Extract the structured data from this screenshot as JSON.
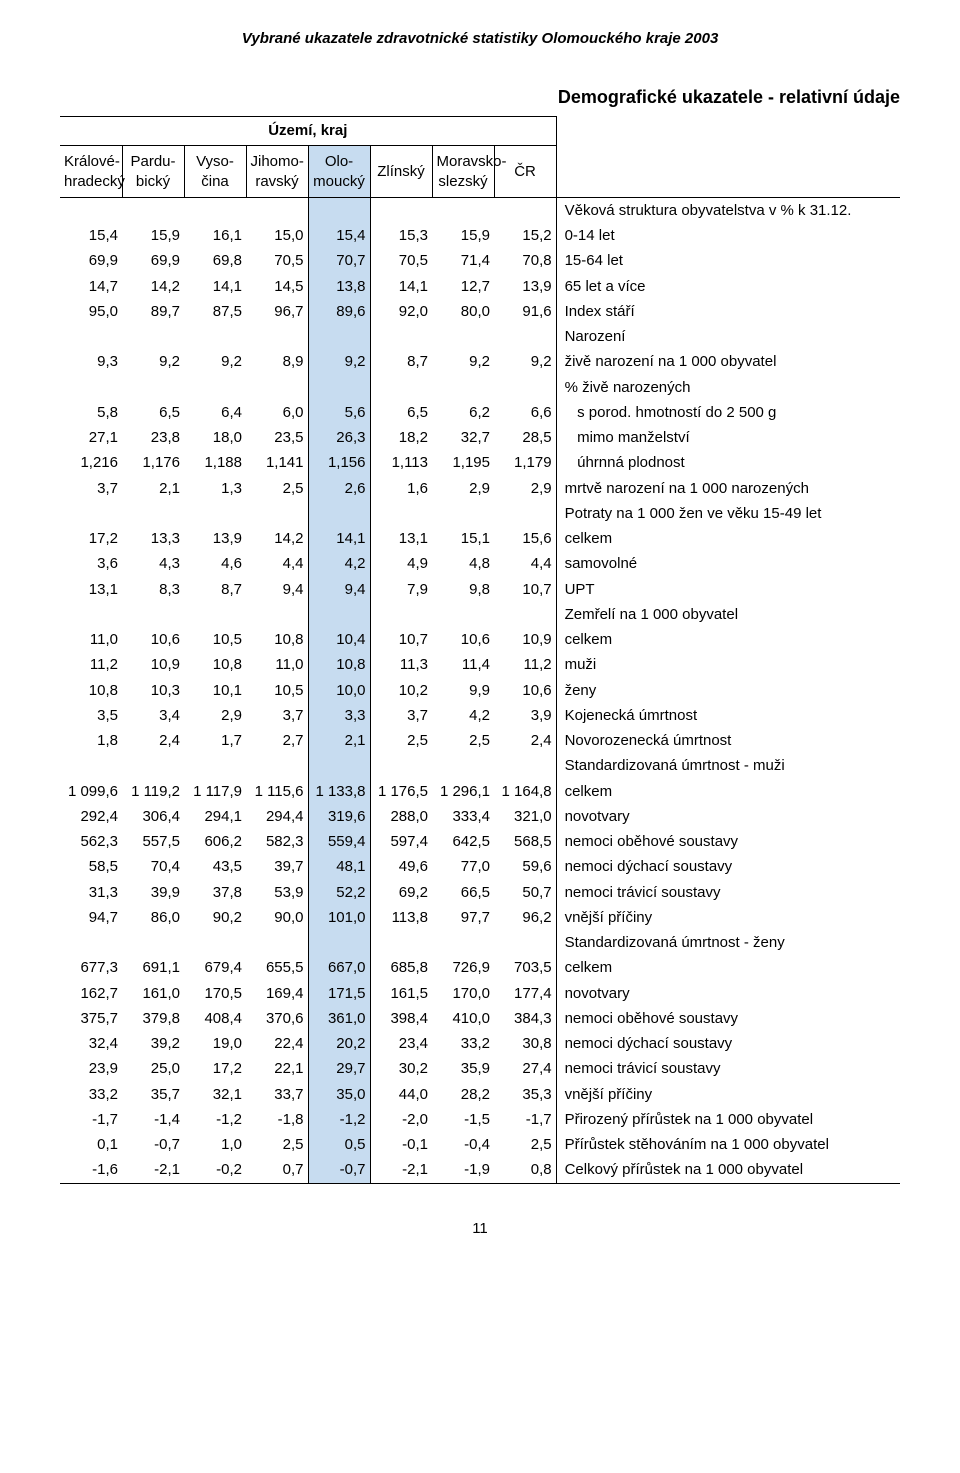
{
  "doc_title": "Vybrané ukazatele zdravotnické statistiky Olomouckého kraje 2003",
  "subtitle": "Demografické ukazatele - relativní údaje",
  "page_number": "11",
  "header_top": "Území, kraj",
  "regions": [
    "Králové-hradecký",
    "Pardu-bický",
    "Vyso-čina",
    "Jihomo-ravský",
    "Olo-moucký",
    "Zlínský",
    "Moravsko-slezský",
    "ČR"
  ],
  "olom_index": 4,
  "section_before_table": "Věková struktura obyvatelstva v % k 31.12.",
  "rows": [
    {
      "v": [
        "15,4",
        "15,9",
        "16,1",
        "15,0",
        "15,4",
        "15,3",
        "15,9",
        "15,2"
      ],
      "l": "0-14 let"
    },
    {
      "v": [
        "69,9",
        "69,9",
        "69,8",
        "70,5",
        "70,7",
        "70,5",
        "71,4",
        "70,8"
      ],
      "l": "15-64 let"
    },
    {
      "v": [
        "14,7",
        "14,2",
        "14,1",
        "14,5",
        "13,8",
        "14,1",
        "12,7",
        "13,9"
      ],
      "l": "65 let a více"
    },
    {
      "v": [
        "95,0",
        "89,7",
        "87,5",
        "96,7",
        "89,6",
        "92,0",
        "80,0",
        "91,6"
      ],
      "l": "Index stáří"
    },
    {
      "v": [
        "",
        "",
        "",
        "",
        "",
        "",
        "",
        ""
      ],
      "l": "Narození"
    },
    {
      "v": [
        "9,3",
        "9,2",
        "9,2",
        "8,9",
        "9,2",
        "8,7",
        "9,2",
        "9,2"
      ],
      "l": "živě narození na 1 000 obyvatel"
    },
    {
      "v": [
        "",
        "",
        "",
        "",
        "",
        "",
        "",
        ""
      ],
      "l": "% živě narozených"
    },
    {
      "v": [
        "5,8",
        "6,5",
        "6,4",
        "6,0",
        "5,6",
        "6,5",
        "6,2",
        "6,6"
      ],
      "l": "   s porod. hmotností do 2 500 g"
    },
    {
      "v": [
        "27,1",
        "23,8",
        "18,0",
        "23,5",
        "26,3",
        "18,2",
        "32,7",
        "28,5"
      ],
      "l": "   mimo manželství"
    },
    {
      "v": [
        "1,216",
        "1,176",
        "1,188",
        "1,141",
        "1,156",
        "1,113",
        "1,195",
        "1,179"
      ],
      "l": "   úhrnná plodnost"
    },
    {
      "v": [
        "3,7",
        "2,1",
        "1,3",
        "2,5",
        "2,6",
        "1,6",
        "2,9",
        "2,9"
      ],
      "l": "mrtvě narození na 1 000 narozených"
    },
    {
      "v": [
        "",
        "",
        "",
        "",
        "",
        "",
        "",
        ""
      ],
      "l": "Potraty na 1 000 žen ve věku 15-49 let"
    },
    {
      "v": [
        "17,2",
        "13,3",
        "13,9",
        "14,2",
        "14,1",
        "13,1",
        "15,1",
        "15,6"
      ],
      "l": "celkem"
    },
    {
      "v": [
        "3,6",
        "4,3",
        "4,6",
        "4,4",
        "4,2",
        "4,9",
        "4,8",
        "4,4"
      ],
      "l": "samovolné"
    },
    {
      "v": [
        "13,1",
        "8,3",
        "8,7",
        "9,4",
        "9,4",
        "7,9",
        "9,8",
        "10,7"
      ],
      "l": "UPT"
    },
    {
      "v": [
        "",
        "",
        "",
        "",
        "",
        "",
        "",
        ""
      ],
      "l": "Zemřelí na 1 000 obyvatel"
    },
    {
      "v": [
        "11,0",
        "10,6",
        "10,5",
        "10,8",
        "10,4",
        "10,7",
        "10,6",
        "10,9"
      ],
      "l": "celkem"
    },
    {
      "v": [
        "11,2",
        "10,9",
        "10,8",
        "11,0",
        "10,8",
        "11,3",
        "11,4",
        "11,2"
      ],
      "l": "muži"
    },
    {
      "v": [
        "10,8",
        "10,3",
        "10,1",
        "10,5",
        "10,0",
        "10,2",
        "9,9",
        "10,6"
      ],
      "l": "ženy"
    },
    {
      "v": [
        "3,5",
        "3,4",
        "2,9",
        "3,7",
        "3,3",
        "3,7",
        "4,2",
        "3,9"
      ],
      "l": "Kojenecká úmrtnost"
    },
    {
      "v": [
        "1,8",
        "2,4",
        "1,7",
        "2,7",
        "2,1",
        "2,5",
        "2,5",
        "2,4"
      ],
      "l": "Novorozenecká úmrtnost"
    },
    {
      "v": [
        "",
        "",
        "",
        "",
        "",
        "",
        "",
        ""
      ],
      "l": "Standardizovaná úmrtnost - muži"
    },
    {
      "v": [
        "1 099,6",
        "1 119,2",
        "1 117,9",
        "1 115,6",
        "1 133,8",
        "1 176,5",
        "1 296,1",
        "1 164,8"
      ],
      "l": "celkem"
    },
    {
      "v": [
        "292,4",
        "306,4",
        "294,1",
        "294,4",
        "319,6",
        "288,0",
        "333,4",
        "321,0"
      ],
      "l": "novotvary"
    },
    {
      "v": [
        "562,3",
        "557,5",
        "606,2",
        "582,3",
        "559,4",
        "597,4",
        "642,5",
        "568,5"
      ],
      "l": "nemoci oběhové soustavy"
    },
    {
      "v": [
        "58,5",
        "70,4",
        "43,5",
        "39,7",
        "48,1",
        "49,6",
        "77,0",
        "59,6"
      ],
      "l": "nemoci dýchací soustavy"
    },
    {
      "v": [
        "31,3",
        "39,9",
        "37,8",
        "53,9",
        "52,2",
        "69,2",
        "66,5",
        "50,7"
      ],
      "l": "nemoci trávicí soustavy"
    },
    {
      "v": [
        "94,7",
        "86,0",
        "90,2",
        "90,0",
        "101,0",
        "113,8",
        "97,7",
        "96,2"
      ],
      "l": "vnější příčiny"
    },
    {
      "v": [
        "",
        "",
        "",
        "",
        "",
        "",
        "",
        ""
      ],
      "l": "Standardizovaná úmrtnost - ženy"
    },
    {
      "v": [
        "677,3",
        "691,1",
        "679,4",
        "655,5",
        "667,0",
        "685,8",
        "726,9",
        "703,5"
      ],
      "l": "celkem"
    },
    {
      "v": [
        "162,7",
        "161,0",
        "170,5",
        "169,4",
        "171,5",
        "161,5",
        "170,0",
        "177,4"
      ],
      "l": "novotvary"
    },
    {
      "v": [
        "375,7",
        "379,8",
        "408,4",
        "370,6",
        "361,0",
        "398,4",
        "410,0",
        "384,3"
      ],
      "l": "nemoci oběhové soustavy"
    },
    {
      "v": [
        "32,4",
        "39,2",
        "19,0",
        "22,4",
        "20,2",
        "23,4",
        "33,2",
        "30,8"
      ],
      "l": "nemoci dýchací soustavy"
    },
    {
      "v": [
        "23,9",
        "25,0",
        "17,2",
        "22,1",
        "29,7",
        "30,2",
        "35,9",
        "27,4"
      ],
      "l": "nemoci trávicí soustavy"
    },
    {
      "v": [
        "33,2",
        "35,7",
        "32,1",
        "33,7",
        "35,0",
        "44,0",
        "28,2",
        "35,3"
      ],
      "l": "vnější příčiny"
    },
    {
      "v": [
        "-1,7",
        "-1,4",
        "-1,2",
        "-1,8",
        "-1,2",
        "-2,0",
        "-1,5",
        "-1,7"
      ],
      "l": "Přirozený přírůstek na 1 000 obyvatel"
    },
    {
      "v": [
        "0,1",
        "-0,7",
        "1,0",
        "2,5",
        "0,5",
        "-0,1",
        "-0,4",
        "2,5"
      ],
      "l": "Přírůstek stěhováním na 1 000 obyvatel"
    },
    {
      "v": [
        "-1,6",
        "-2,1",
        "-0,2",
        "0,7",
        "-0,7",
        "-2,1",
        "-1,9",
        "0,8"
      ],
      "l": "Celkový přírůstek na 1 000 obyvatel"
    }
  ]
}
